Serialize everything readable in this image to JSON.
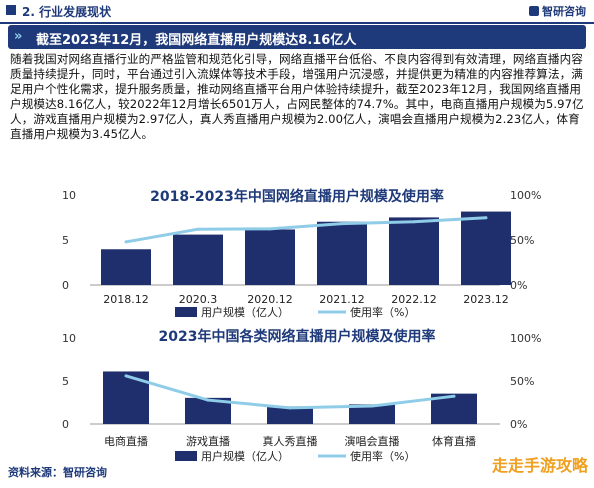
{
  "header": {
    "section_title": "2. 行业发展现状",
    "logo_text": "智研咨询"
  },
  "banner": {
    "text": "截至2023年12月，我国网络直播用户规模达8.16亿人"
  },
  "paragraph": "随着我国对网络直播行业的严格监管和规范化引导，网络直播平台低俗、不良内容得到有效清理，网络直播内容质量持续提升，同时，平台通过引入流媒体等技术手段，增强用户沉浸感，并提供更为精准的内容推荐算法，满足用户个性化需求，提升服务质量，推动网络直播平台用户体验持续提升，截至2023年12月，我国网络直播用户规模达8.16亿人，较2022年12月增长6501万人，占网民整体的74.7%。其中，电商直播用户规模为5.97亿人，游戏直播用户规模为2.97亿人，真人秀直播用户规模为2.00亿人，演唱会直播用户规模为2.23亿人，体育直播用户规模为3.45亿人。",
  "footer": {
    "source": "资料来源：智研咨询",
    "watermark": "走走手游攻略"
  },
  "chart_data": [
    {
      "type": "bar",
      "title": "2018-2023年中国网络直播用户规模及使用率",
      "categories": [
        "2018.12",
        "2020.3",
        "2020.12",
        "2021.12",
        "2022.12",
        "2023.12"
      ],
      "series": [
        {
          "name": "用户规模（亿人）",
          "type": "bar",
          "axis": "left",
          "values": [
            3.97,
            5.6,
            6.17,
            7.03,
            7.51,
            8.16
          ]
        },
        {
          "name": "使用率（%）",
          "type": "line",
          "axis": "right",
          "values": [
            47.9,
            62.0,
            62.4,
            68.2,
            70.3,
            74.7
          ]
        }
      ],
      "left_ticks": [
        "10",
        "5",
        "0"
      ],
      "right_ticks": [
        "100%",
        "50%",
        "0%"
      ],
      "ylim_left": [
        0,
        10
      ],
      "ylim_right": [
        0,
        100
      ],
      "legend": "bottom",
      "colors": {
        "bar": "#1f2f6e",
        "line": "#8fcce8"
      }
    },
    {
      "type": "bar",
      "title": "2023年中国各类网络直播用户规模及使用率",
      "categories": [
        "电商直播",
        "游戏直播",
        "真人秀直播",
        "演唱会直播",
        "体育直播"
      ],
      "series": [
        {
          "name": "用户规模（亿人）",
          "type": "bar",
          "axis": "left",
          "values": [
            5.97,
            2.97,
            2.0,
            2.23,
            3.45
          ]
        },
        {
          "name": "使用率（%）",
          "type": "line",
          "axis": "right",
          "values": [
            54.7,
            27.2,
            18.3,
            20.4,
            31.6
          ]
        }
      ],
      "left_ticks": [
        "10",
        "5",
        "0"
      ],
      "right_ticks": [
        "100%",
        "50%",
        "0%"
      ],
      "ylim_left": [
        0,
        10
      ],
      "ylim_right": [
        0,
        100
      ],
      "legend": "bottom",
      "colors": {
        "bar": "#1f2f6e",
        "line": "#8fcce8"
      }
    }
  ]
}
